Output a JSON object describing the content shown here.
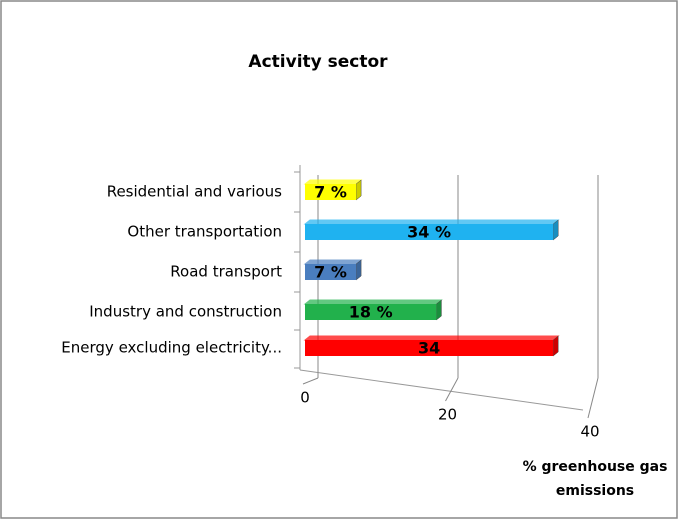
{
  "chart_data": {
    "type": "bar3d",
    "title": "Activity sector",
    "categories": [
      "Residential and various",
      "Other transportation",
      "Road transport",
      "Industry and construction",
      "Energy excluding electricity..."
    ],
    "values": [
      7,
      34,
      7,
      18,
      34
    ],
    "value_labels": [
      "7 %",
      "34 %",
      "7 %",
      "18 %",
      "34"
    ],
    "colors": [
      "#ffff00",
      "#1fb2f0",
      "#4a7ebf",
      "#22b14c",
      "#ff0000"
    ],
    "xlabel": "% greenhouse gas emissions",
    "xlim": [
      0,
      40
    ],
    "xticks": [
      0,
      20,
      40
    ],
    "grid": true
  }
}
